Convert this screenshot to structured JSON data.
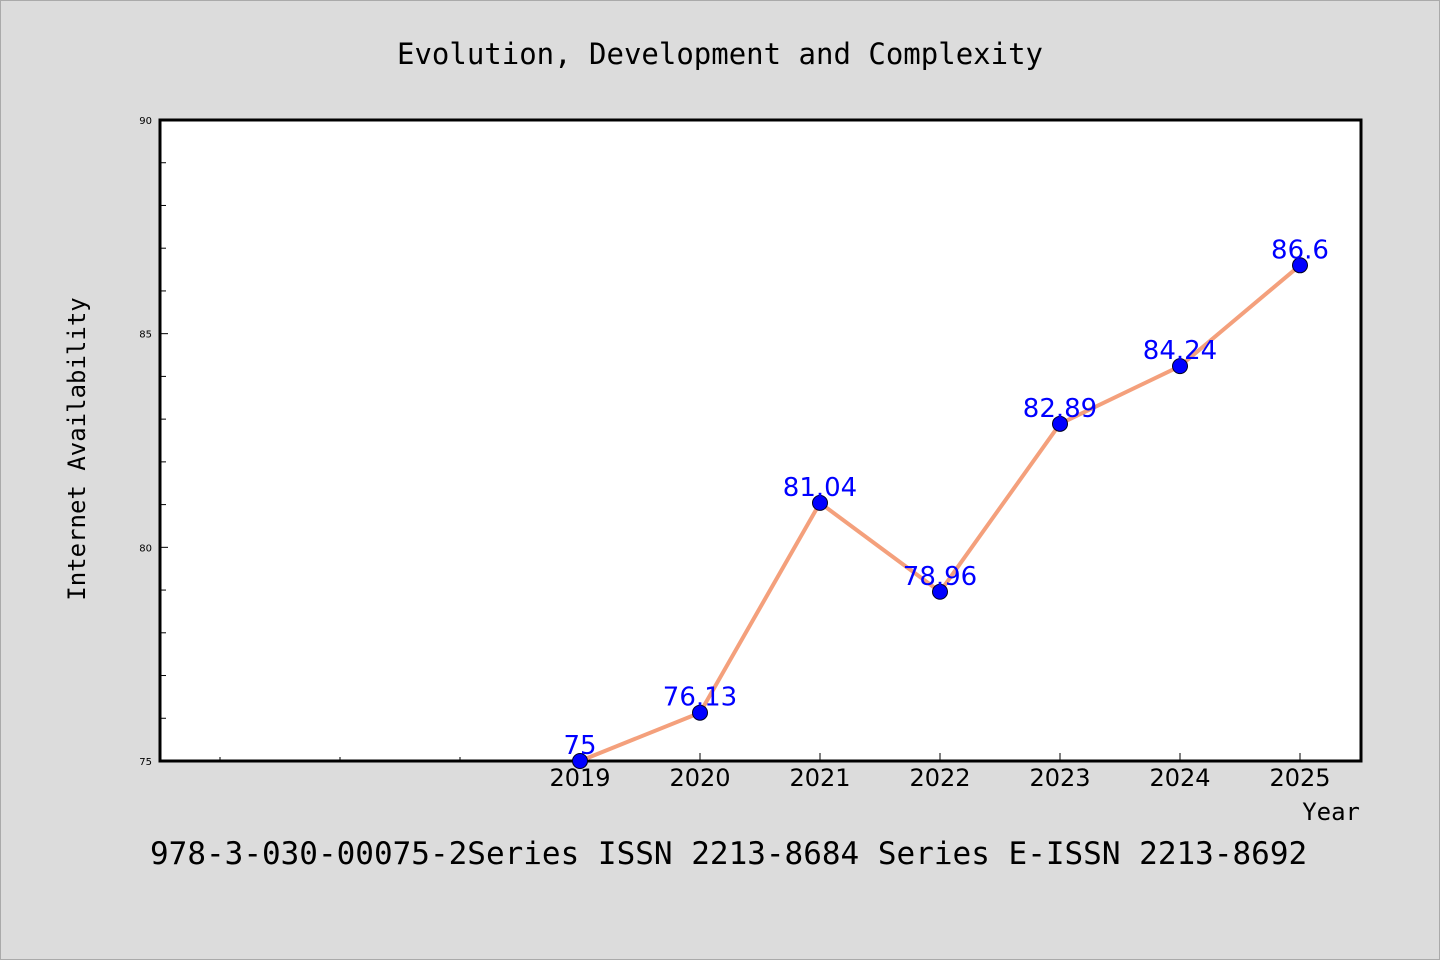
{
  "chart_data": {
    "type": "line",
    "title": "Evolution, Development and Complexity",
    "xlabel": "Year",
    "ylabel": "Internet Availability",
    "x": [
      "2019",
      "2020",
      "2021",
      "2022",
      "2023",
      "2024",
      "2025"
    ],
    "series": [
      {
        "values": [
          75,
          76.13,
          81.04,
          78.96,
          82.89,
          84.24,
          86.6
        ],
        "data_labels": [
          "75",
          "76.13",
          "81.04",
          "78.96",
          "82.89",
          "84.24",
          "86.6"
        ]
      }
    ],
    "ylim": [
      75,
      90
    ],
    "y_ticks": [
      "75",
      "80",
      "85",
      "90"
    ],
    "grid": false,
    "line_color": "#f4a07c",
    "marker_color": "#0000ff",
    "label_color": "#0000ff"
  },
  "footer": {
    "text": "978-3-030-00075-2Series ISSN 2213-8684 Series E-ISSN 2213-8692"
  }
}
